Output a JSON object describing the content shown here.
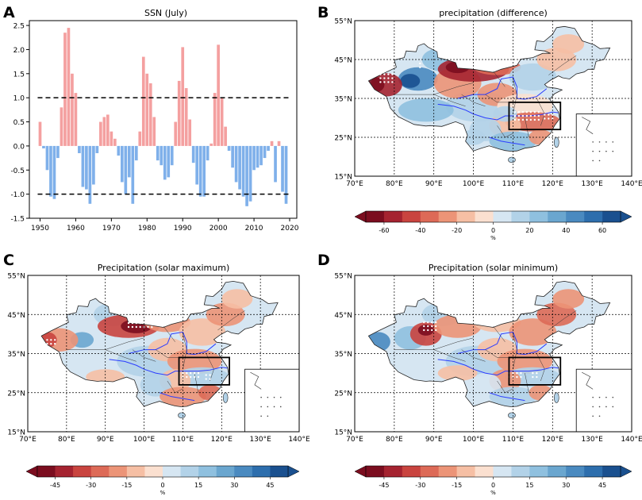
{
  "figure": {
    "panel_letters": [
      "A",
      "B",
      "C",
      "D"
    ]
  },
  "chart_data": [
    {
      "panel": "A",
      "type": "bar",
      "title": "SSN (July)",
      "xlabel": "",
      "ylabel": "",
      "xlim": [
        1947,
        2022
      ],
      "ylim": [
        -1.5,
        2.6
      ],
      "xticks": [
        1950,
        1960,
        1970,
        1980,
        1990,
        2000,
        2010,
        2020
      ],
      "yticks": [
        -1.5,
        -1.0,
        -0.5,
        0.0,
        0.5,
        1.0,
        1.5,
        2.0,
        2.5
      ],
      "ytick_labels": [
        "-1.5",
        "-1.0",
        "-0.5",
        "0.0",
        "0.5",
        "1.0",
        "1.5",
        "2.0",
        "2.5"
      ],
      "reference_lines": [
        1.0,
        -1.0
      ],
      "colors": {
        "positive": "#f4a0a0",
        "negative": "#7fb0ea",
        "line": "#000000"
      },
      "years": [
        1950,
        1951,
        1952,
        1953,
        1954,
        1955,
        1956,
        1957,
        1958,
        1959,
        1960,
        1961,
        1962,
        1963,
        1964,
        1965,
        1966,
        1967,
        1968,
        1969,
        1970,
        1971,
        1972,
        1973,
        1974,
        1975,
        1976,
        1977,
        1978,
        1979,
        1980,
        1981,
        1982,
        1983,
        1984,
        1985,
        1986,
        1987,
        1988,
        1989,
        1990,
        1991,
        1992,
        1993,
        1994,
        1995,
        1996,
        1997,
        1998,
        1999,
        2000,
        2001,
        2002,
        2003,
        2004,
        2005,
        2006,
        2007,
        2008,
        2009,
        2010,
        2011,
        2012,
        2013,
        2014,
        2015,
        2016,
        2017,
        2018,
        2019
      ],
      "values": [
        0.5,
        -0.05,
        -0.5,
        -1.05,
        -1.1,
        -0.25,
        0.8,
        2.35,
        2.45,
        1.5,
        1.1,
        -0.15,
        -0.85,
        -0.9,
        -1.2,
        -0.8,
        -0.15,
        0.5,
        0.6,
        0.65,
        0.3,
        0.15,
        -0.2,
        -0.75,
        -1.0,
        -0.65,
        -1.2,
        -0.3,
        0.3,
        1.85,
        1.5,
        1.3,
        0.6,
        -0.3,
        -0.4,
        -0.7,
        -0.65,
        -0.4,
        0.5,
        1.35,
        2.05,
        1.2,
        0.55,
        -0.35,
        -0.8,
        -1.05,
        -1.05,
        -0.3,
        0.05,
        1.1,
        2.1,
        1.0,
        0.4,
        -0.1,
        -0.45,
        -0.75,
        -0.9,
        -1.05,
        -1.25,
        -1.15,
        -0.5,
        -0.45,
        -0.4,
        -0.25,
        -0.1,
        0.1,
        -0.75,
        0.1,
        -0.95,
        -1.2
      ]
    },
    {
      "panel": "B",
      "type": "map",
      "title": "precipitation (difference)",
      "lat_ticks": [
        "55°N",
        "45°N",
        "35°N",
        "25°N",
        "15°N"
      ],
      "lon_ticks": [
        "70°E",
        "80°E",
        "90°E",
        "100°E",
        "110°E",
        "120°E",
        "130°E",
        "140°E"
      ],
      "colorbar": {
        "ticks": [
          "-60",
          "-40",
          "-20",
          "0",
          "20",
          "40",
          "60"
        ],
        "label": "%",
        "colors": [
          "#7b0d1f",
          "#a52330",
          "#c9443f",
          "#dd6a57",
          "#ec9477",
          "#f6bfa4",
          "#fbe0d0",
          "#d6e6f2",
          "#b2d2e8",
          "#8fc0df",
          "#6aa6cf",
          "#4a8ac0",
          "#2d6ead",
          "#1a508f"
        ]
      }
    },
    {
      "panel": "C",
      "type": "map",
      "title": "Precipitation (solar maximum)",
      "lat_ticks": [
        "55°N",
        "45°N",
        "35°N",
        "25°N",
        "15°N"
      ],
      "lon_ticks": [
        "70°E",
        "80°E",
        "90°E",
        "100°E",
        "110°E",
        "120°E",
        "130°E",
        "140°E"
      ],
      "colorbar": {
        "ticks": [
          "-45",
          "-30",
          "-15",
          "0",
          "15",
          "30",
          "45"
        ],
        "label": "%",
        "colors": [
          "#7b0d1f",
          "#a52330",
          "#c9443f",
          "#dd6a57",
          "#ec9477",
          "#f6bfa4",
          "#fbe0d0",
          "#d6e6f2",
          "#b2d2e8",
          "#8fc0df",
          "#6aa6cf",
          "#4a8ac0",
          "#2d6ead",
          "#1a508f"
        ]
      }
    },
    {
      "panel": "D",
      "type": "map",
      "title": "Precipitation (solar minimum)",
      "lat_ticks": [
        "55°N",
        "45°N",
        "35°N",
        "25°N",
        "15°N"
      ],
      "lon_ticks": [
        "70°E",
        "80°E",
        "90°E",
        "100°E",
        "110°E",
        "120°E",
        "130°E",
        "140°E"
      ],
      "colorbar": {
        "ticks": [
          "-45",
          "-30",
          "-15",
          "0",
          "15",
          "30",
          "45"
        ],
        "label": "%",
        "colors": [
          "#7b0d1f",
          "#a52330",
          "#c9443f",
          "#dd6a57",
          "#ec9477",
          "#f6bfa4",
          "#fbe0d0",
          "#d6e6f2",
          "#b2d2e8",
          "#8fc0df",
          "#6aa6cf",
          "#4a8ac0",
          "#2d6ead",
          "#1a508f"
        ]
      }
    }
  ]
}
